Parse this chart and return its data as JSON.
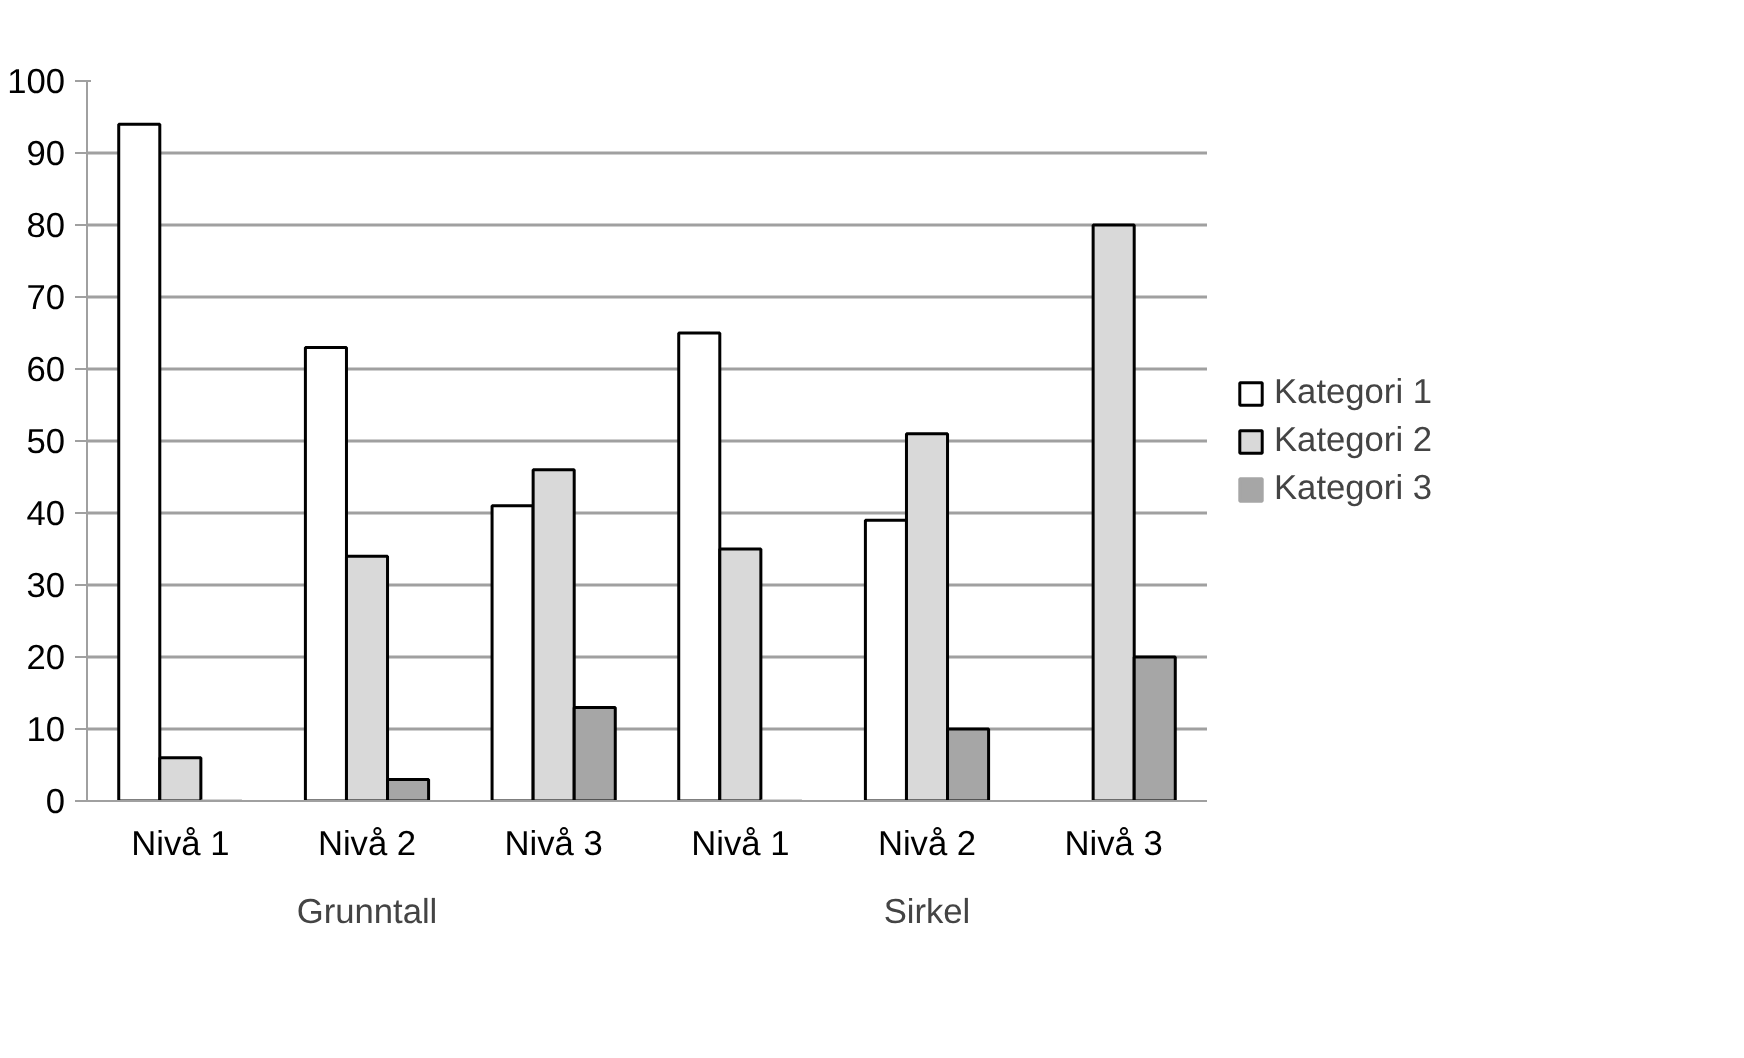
{
  "chart_data": {
    "type": "bar",
    "categories": [
      "Nivå 1",
      "Nivå 2",
      "Nivå 3",
      "Nivå 1",
      "Nivå 2",
      "Nivå 3"
    ],
    "series": [
      {
        "name": "Kategori 1",
        "color": "#ffffff",
        "values": [
          94,
          63,
          41,
          65,
          39,
          0
        ]
      },
      {
        "name": "Kategori 2",
        "color": "#d9d9d9",
        "values": [
          6,
          34,
          46,
          35,
          51,
          80
        ]
      },
      {
        "name": "Kategori 3",
        "color": "#a6a6a6",
        "values": [
          0,
          3,
          13,
          0,
          10,
          20
        ]
      }
    ],
    "annotations": [
      "Grunntall",
      "Sirkel"
    ],
    "ylim": [
      0,
      100
    ],
    "yticks": [
      0,
      10,
      20,
      30,
      40,
      50,
      60,
      70,
      80,
      90,
      100
    ],
    "grid": "y",
    "legend": "right"
  }
}
